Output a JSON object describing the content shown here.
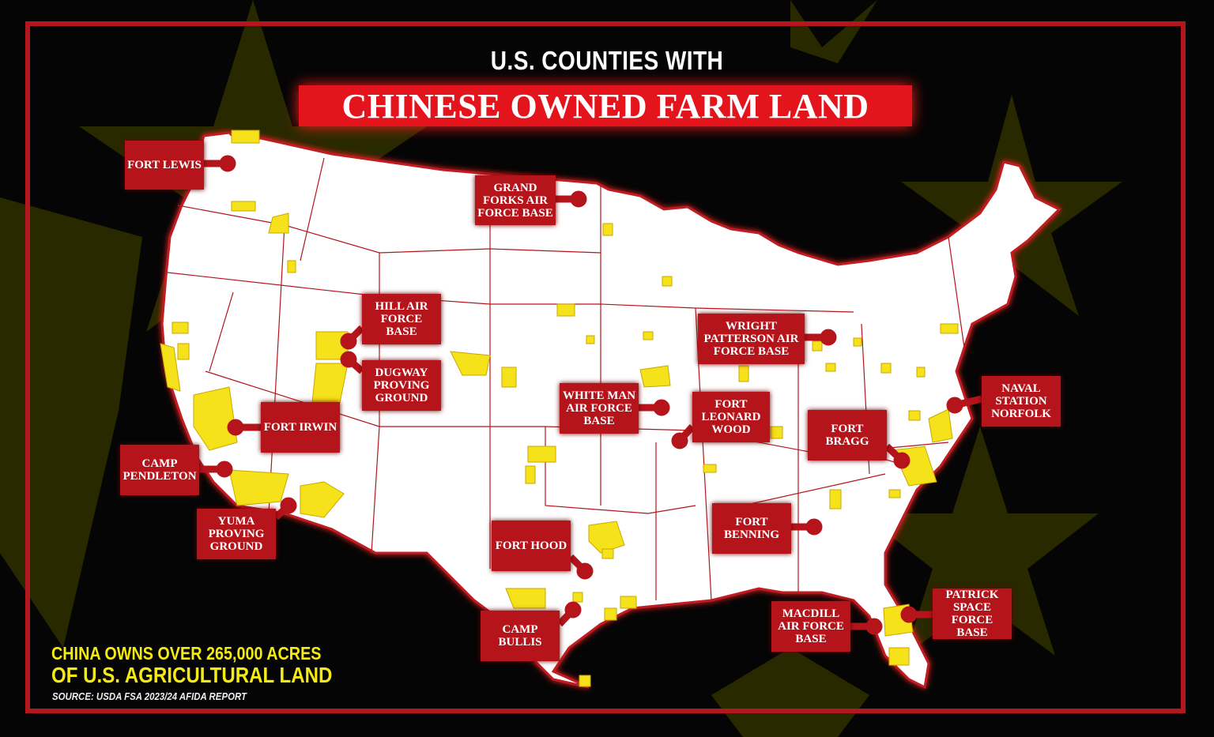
{
  "header": {
    "subtitle": "U.S. COUNTIES WITH",
    "title": "CHINESE OWNED FARM LAND"
  },
  "colors": {
    "background": "#050505",
    "frame": "#b3161c",
    "title_bg": "#e3141c",
    "callout_bg": "#b5141b",
    "land": "#ffffff",
    "state_border": "#b3161c",
    "chinese_owned_counties": "#f5e21a",
    "flag_stars": "#3a3a00"
  },
  "map": {
    "legend_meaning": "Yellow = counties with Chinese-owned farm land",
    "bases": [
      {
        "label": "FORT LEWIS"
      },
      {
        "label": "GRAND FORKS AIR FORCE BASE"
      },
      {
        "label": "HILL AIR FORCE BASE"
      },
      {
        "label": "DUGWAY PROVING GROUND"
      },
      {
        "label": "FORT IRWIN"
      },
      {
        "label": "CAMP PENDLETON"
      },
      {
        "label": "YUMA PROVING GROUND"
      },
      {
        "label": "WHITE MAN AIR FORCE BASE"
      },
      {
        "label": "FORT LEONARD WOOD"
      },
      {
        "label": "WRIGHT PATTERSON AIR FORCE BASE"
      },
      {
        "label": "FORT BRAGG"
      },
      {
        "label": "NAVAL STATION NORFOLK"
      },
      {
        "label": "FORT BENNING"
      },
      {
        "label": "FORT HOOD"
      },
      {
        "label": "CAMP BULLIS"
      },
      {
        "label": "MACDILL AIR FORCE BASE"
      },
      {
        "label": "PATRICK SPACE FORCE BASE"
      }
    ]
  },
  "footer": {
    "stat_line1": "CHINA OWNS OVER  265,000 ACRES",
    "stat_line2": "OF U.S. AGRICULTURAL LAND",
    "source": "SOURCE: USDA FSA 2023/24 AFIDA REPORT"
  }
}
